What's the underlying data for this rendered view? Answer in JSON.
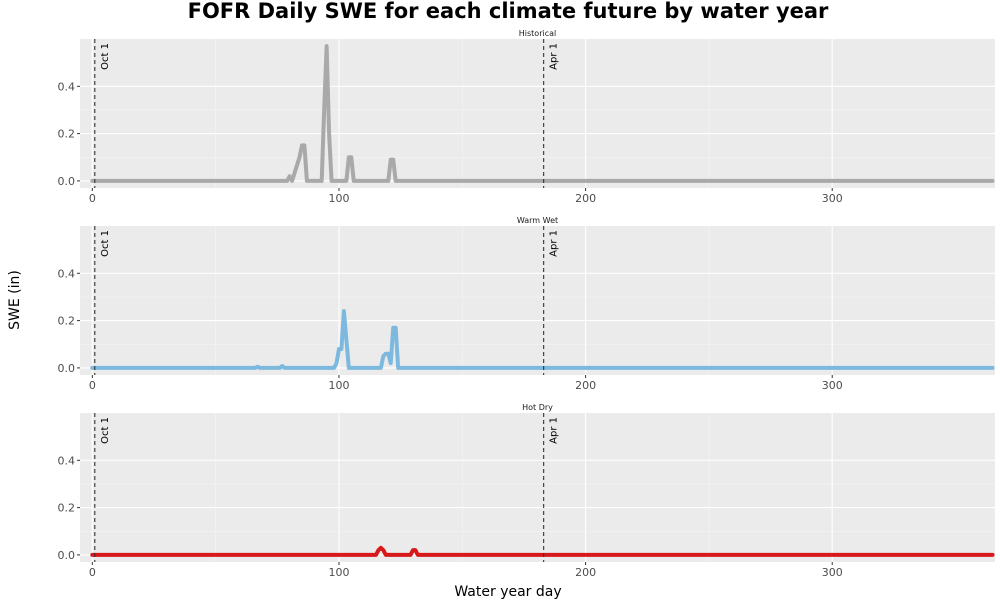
{
  "figure": {
    "title": "FOFR Daily SWE for each climate future by water year",
    "xlabel": "Water year day",
    "ylabel": "SWE (in)"
  },
  "chart_data": [
    {
      "type": "line",
      "panel": "Historical",
      "color": "#A9A9A9",
      "xlim": [
        -5,
        366
      ],
      "ylim": [
        -0.03,
        0.6
      ],
      "xticks": [
        0,
        100,
        200,
        300
      ],
      "yticks": [
        0.0,
        0.2,
        0.4
      ],
      "ytick_labels": [
        "0.0",
        "0.2",
        "0.4"
      ],
      "grid": true,
      "vlines": [
        {
          "x": 1,
          "label": "Oct 1"
        },
        {
          "x": 183,
          "label": "Apr 1"
        }
      ],
      "x": [
        0,
        79,
        80,
        81,
        84,
        85,
        86,
        87,
        93,
        94,
        95,
        96,
        97,
        103,
        104,
        105,
        106,
        120,
        121,
        122,
        123,
        365
      ],
      "y": [
        0,
        0,
        0.02,
        0,
        0.1,
        0.15,
        0.15,
        0,
        0,
        0.3,
        0.57,
        0.2,
        0,
        0,
        0.1,
        0.1,
        0,
        0,
        0.09,
        0.09,
        0,
        0
      ]
    },
    {
      "type": "line",
      "panel": "Warm Wet",
      "color": "#7DB9DF",
      "xlim": [
        -5,
        366
      ],
      "ylim": [
        -0.03,
        0.6
      ],
      "xticks": [
        0,
        100,
        200,
        300
      ],
      "yticks": [
        0.0,
        0.2,
        0.4
      ],
      "ytick_labels": [
        "0.0",
        "0.2",
        "0.4"
      ],
      "grid": true,
      "vlines": [
        {
          "x": 1,
          "label": "Oct 1"
        },
        {
          "x": 183,
          "label": "Apr 1"
        }
      ],
      "x": [
        0,
        66,
        67,
        68,
        76,
        77,
        78,
        98,
        99,
        100,
        101,
        102,
        103,
        104,
        117,
        118,
        119,
        120,
        121,
        122,
        123,
        124,
        125,
        365
      ],
      "y": [
        0,
        0,
        0.005,
        0,
        0,
        0.008,
        0,
        0,
        0.02,
        0.08,
        0.08,
        0.24,
        0.12,
        0,
        0,
        0.05,
        0.06,
        0.06,
        0.02,
        0.17,
        0.17,
        0,
        0,
        0
      ]
    },
    {
      "type": "line",
      "panel": "Hot Dry",
      "color": "#D7191C",
      "xlim": [
        -5,
        366
      ],
      "ylim": [
        -0.03,
        0.6
      ],
      "xticks": [
        0,
        100,
        200,
        300
      ],
      "yticks": [
        0.0,
        0.2,
        0.4
      ],
      "ytick_labels": [
        "0.0",
        "0.2",
        "0.4"
      ],
      "grid": true,
      "vlines": [
        {
          "x": 1,
          "label": "Oct 1"
        },
        {
          "x": 183,
          "label": "Apr 1"
        }
      ],
      "x": [
        0,
        115,
        116,
        117,
        118,
        119,
        129,
        130,
        131,
        132,
        365
      ],
      "y": [
        0,
        0,
        0.02,
        0.03,
        0.02,
        0,
        0,
        0.02,
        0.02,
        0,
        0
      ]
    }
  ]
}
